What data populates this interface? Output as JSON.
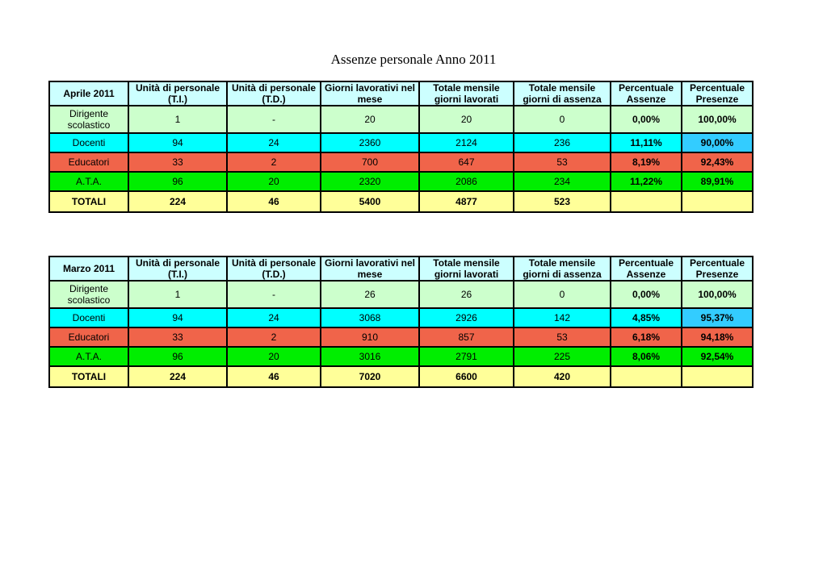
{
  "title": "Assenze personale Anno 2011",
  "headers": [
    "Unità di personale (T.I.)",
    "Unità di personale (T.D.)",
    "Giorni lavorativi nel mese",
    "Totale mensile giorni lavorati",
    "Totale mensile giorni di assenza",
    "Percentuale Assenze",
    "Percentuale Presenze"
  ],
  "tables": [
    {
      "month": "Aprile 2011",
      "rows": [
        {
          "label": "Dirigente scolastico",
          "ti": "1",
          "td": "-",
          "giorni": "20",
          "lavorati": "20",
          "assenza": "0",
          "pct_ass": "0,00%",
          "pct_pres": "100,00%"
        },
        {
          "label": "Docenti",
          "ti": "94",
          "td": "24",
          "giorni": "2360",
          "lavorati": "2124",
          "assenza": "236",
          "pct_ass": "11,11%",
          "pct_pres": "90,00%"
        },
        {
          "label": "Educatori",
          "ti": "33",
          "td": "2",
          "giorni": "700",
          "lavorati": "647",
          "assenza": "53",
          "pct_ass": "8,19%",
          "pct_pres": "92,43%"
        },
        {
          "label": "A.T.A.",
          "ti": "96",
          "td": "20",
          "giorni": "2320",
          "lavorati": "2086",
          "assenza": "234",
          "pct_ass": "11,22%",
          "pct_pres": "89,91%"
        }
      ],
      "totals": {
        "label": "TOTALI",
        "ti": "224",
        "td": "46",
        "giorni": "5400",
        "lavorati": "4877",
        "assenza": "523",
        "pct_ass": "",
        "pct_pres": ""
      }
    },
    {
      "month": "Marzo 2011",
      "rows": [
        {
          "label": "Dirigente scolastico",
          "ti": "1",
          "td": "-",
          "giorni": "26",
          "lavorati": "26",
          "assenza": "0",
          "pct_ass": "0,00%",
          "pct_pres": "100,00%"
        },
        {
          "label": "Docenti",
          "ti": "94",
          "td": "24",
          "giorni": "3068",
          "lavorati": "2926",
          "assenza": "142",
          "pct_ass": "4,85%",
          "pct_pres": "95,37%"
        },
        {
          "label": "Educatori",
          "ti": "33",
          "td": "2",
          "giorni": "910",
          "lavorati": "857",
          "assenza": "53",
          "pct_ass": "6,18%",
          "pct_pres": "94,18%"
        },
        {
          "label": "A.T.A.",
          "ti": "96",
          "td": "20",
          "giorni": "3016",
          "lavorati": "2791",
          "assenza": "225",
          "pct_ass": "8,06%",
          "pct_pres": "92,54%"
        }
      ],
      "totals": {
        "label": "TOTALI",
        "ti": "224",
        "td": "46",
        "giorni": "7020",
        "lavorati": "6600",
        "assenza": "420",
        "pct_ass": "",
        "pct_pres": ""
      }
    }
  ],
  "colors": {
    "header_bg": "#ccffff",
    "dirigente_bg": "#ccffcc",
    "docenti_bg": "#00ffff",
    "educatori_bg": "#f0644a",
    "ata_bg": "#00ee00",
    "totali_bg": "#ffff99"
  }
}
